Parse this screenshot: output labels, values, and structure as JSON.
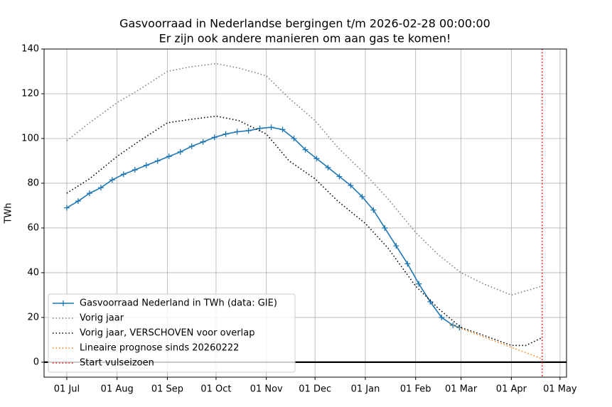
{
  "chart_data": {
    "type": "line",
    "title": "Gasvoorraad in Nederlandse bergingen t/m 2026-02-28 00:00:00",
    "subtitle": "Er zijn ook andere manieren om aan gas te komen!",
    "ylabel": "TWh",
    "xlim": [
      "2025-06-17",
      "2026-05-05"
    ],
    "ylim": [
      -6.7,
      140
    ],
    "yticks": [
      0,
      20,
      40,
      60,
      80,
      100,
      120,
      140
    ],
    "xticks": [
      {
        "value": "2025-07-01",
        "label": "01 Jul"
      },
      {
        "value": "2025-08-01",
        "label": "01 Aug"
      },
      {
        "value": "2025-09-01",
        "label": "01 Sep"
      },
      {
        "value": "2025-10-01",
        "label": "01 Oct"
      },
      {
        "value": "2025-11-01",
        "label": "01 Nov"
      },
      {
        "value": "2025-12-01",
        "label": "01 Dec"
      },
      {
        "value": "2026-01-01",
        "label": "01 Jan"
      },
      {
        "value": "2026-02-01",
        "label": "01 Feb"
      },
      {
        "value": "2026-03-01",
        "label": "01 Mar"
      },
      {
        "value": "2026-04-01",
        "label": "01 Apr"
      },
      {
        "value": "2026-05-01",
        "label": "01 May"
      }
    ],
    "grid": true,
    "legend": "lower left",
    "hline": 0,
    "series": [
      {
        "name": "Gasvoorraad Nederland in TWh (data: GIE)",
        "color": "#1f77b4",
        "style": "solid-plus",
        "x": [
          "2025-07-01",
          "2025-07-08",
          "2025-07-15",
          "2025-07-22",
          "2025-07-29",
          "2025-08-05",
          "2025-08-12",
          "2025-08-19",
          "2025-08-26",
          "2025-09-02",
          "2025-09-09",
          "2025-09-16",
          "2025-09-23",
          "2025-09-30",
          "2025-10-07",
          "2025-10-14",
          "2025-10-21",
          "2025-10-28",
          "2025-11-04",
          "2025-11-11",
          "2025-11-18",
          "2025-11-25",
          "2025-12-02",
          "2025-12-09",
          "2025-12-16",
          "2025-12-23",
          "2025-12-30",
          "2026-01-06",
          "2026-01-13",
          "2026-01-20",
          "2026-01-27",
          "2026-02-03",
          "2026-02-10",
          "2026-02-17",
          "2026-02-24",
          "2026-02-28"
        ],
        "values": [
          69,
          72,
          75.5,
          78,
          81.5,
          84,
          86,
          88,
          90,
          92,
          94,
          96.5,
          98.5,
          100.5,
          102,
          103,
          103.5,
          104.5,
          105,
          104,
          100,
          95,
          91,
          87,
          83,
          79,
          74,
          68,
          60,
          52,
          44,
          35,
          27,
          20,
          16.5,
          15.5
        ]
      },
      {
        "name": "Vorig jaar",
        "color": "#808080",
        "style": "dotted",
        "x": [
          "2025-07-01",
          "2025-07-15",
          "2025-08-01",
          "2025-08-15",
          "2025-09-01",
          "2025-09-15",
          "2025-10-01",
          "2025-10-15",
          "2025-11-01",
          "2025-11-15",
          "2025-12-01",
          "2025-12-15",
          "2026-01-01",
          "2026-01-15",
          "2026-02-01",
          "2026-02-15",
          "2026-03-01",
          "2026-03-15",
          "2026-04-01",
          "2026-04-20"
        ],
        "values": [
          99,
          107,
          116,
          122,
          130,
          132,
          133.5,
          131.5,
          128,
          118,
          108,
          96,
          84,
          73,
          58,
          48,
          40,
          35,
          30,
          34
        ]
      },
      {
        "name": "Vorig jaar, VERSCHOVEN voor overlap",
        "color": "#000000",
        "style": "dotted",
        "x": [
          "2025-07-01",
          "2025-07-15",
          "2025-08-01",
          "2025-08-15",
          "2025-09-01",
          "2025-09-15",
          "2025-10-01",
          "2025-10-15",
          "2025-11-01",
          "2025-11-15",
          "2025-12-01",
          "2025-12-15",
          "2026-01-01",
          "2026-01-15",
          "2026-02-01",
          "2026-02-15",
          "2026-03-01",
          "2026-03-15",
          "2026-04-01",
          "2026-04-10",
          "2026-04-20"
        ],
        "values": [
          75.5,
          82,
          92,
          99,
          107,
          108.5,
          110,
          108,
          102,
          90,
          82,
          72,
          62,
          51,
          34,
          24,
          15.5,
          12,
          7.5,
          7.5,
          11
        ]
      },
      {
        "name": "Lineaire prognose sinds 20260222",
        "color": "#ff7f0e",
        "style": "dotted",
        "x": [
          "2026-02-22",
          "2026-04-20"
        ],
        "values": [
          17,
          1.5
        ]
      },
      {
        "name": "Start vulseizoen",
        "color": "#ff0000",
        "style": "vline",
        "x": [
          "2026-04-20"
        ]
      }
    ]
  }
}
